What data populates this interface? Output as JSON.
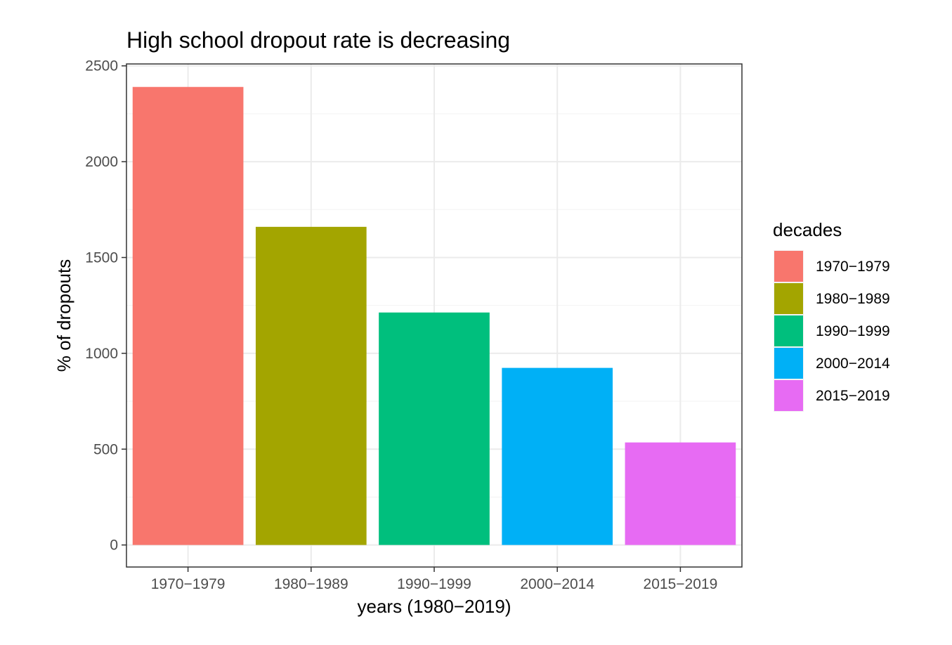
{
  "chart_data": {
    "type": "bar",
    "title": "High school dropout rate is decreasing",
    "xlabel": "years (1980−2019)",
    "ylabel": "% of dropouts",
    "categories": [
      "1970−1979",
      "1980−1989",
      "1990−1999",
      "2000−2014",
      "2015−2019"
    ],
    "values": [
      2390,
      1660,
      1213,
      924,
      535
    ],
    "colors": [
      "#F8766D",
      "#A3A500",
      "#00BF7D",
      "#00B0F6",
      "#E76BF3"
    ],
    "ylim": [
      -115,
      2510
    ],
    "yticks": [
      0,
      500,
      1000,
      1500,
      2000,
      2500
    ],
    "ytick_labels": [
      "0",
      "500",
      "1000",
      "1500",
      "2000",
      "2500"
    ],
    "grid": true,
    "legend": {
      "title": "decades",
      "position": "right",
      "entries": [
        "1970−1979",
        "1980−1989",
        "1990−1999",
        "2000−2014",
        "2015−2019"
      ]
    }
  }
}
